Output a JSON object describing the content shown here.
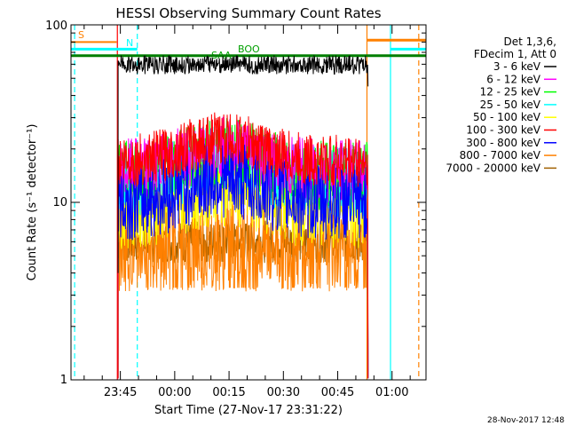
{
  "chart_data": {
    "type": "line",
    "title": "HESSI Observing Summary Count Rates",
    "xlabel": "Start Time (27-Nov-17 23:31:22)",
    "ylabel": "Count Rate (s⁻¹ detector⁻¹)",
    "yscale": "log",
    "ylim": [
      1,
      100
    ],
    "ytick_labels": [
      "1",
      "10",
      "100"
    ],
    "xlim_minutes_from_start": [
      0,
      98
    ],
    "xtick_labels": [
      "23:45",
      "00:00",
      "00:15",
      "00:30",
      "00:45",
      "01:00"
    ],
    "xtick_minutes_from_start": [
      13.63,
      28.63,
      43.63,
      58.63,
      73.63,
      88.63
    ],
    "grid": false,
    "legend_position": "right",
    "legend_header": [
      "Det 1,3,6,",
      "FDecim 1, Att 0"
    ],
    "series": [
      {
        "name": "3 - 6 keV",
        "color": "#000000",
        "approx_level": 60
      },
      {
        "name": "6 - 12 keV",
        "color": "#ff00ff",
        "approx_level": 15
      },
      {
        "name": "12 - 25 keV",
        "color": "#00ff00",
        "approx_level": 14
      },
      {
        "name": "25 - 50 keV",
        "color": "#00ffff",
        "approx_level": 13
      },
      {
        "name": "50 - 100 keV",
        "color": "#ffff00",
        "approx_level": 9
      },
      {
        "name": "100 - 300 keV",
        "color": "#ff0000",
        "approx_level": 17
      },
      {
        "name": "300 - 800 keV",
        "color": "#0000ff",
        "approx_level": 10
      },
      {
        "name": "800 - 7000 keV",
        "color": "#ff8000",
        "approx_level": 6
      },
      {
        "name": "7000 - 20000 keV",
        "color": "#a06000",
        "approx_level": 6
      }
    ],
    "flags": [
      {
        "label": "S",
        "color": "#ff8000"
      },
      {
        "label": "N",
        "color": "#00ffff"
      },
      {
        "label": "SAA",
        "color": "#00a000"
      },
      {
        "label": "BOO",
        "color": "#00a000"
      }
    ],
    "colors": {
      "black": "#000000",
      "magenta": "#ff00ff",
      "green": "#00ff00",
      "cyan": "#00ffff",
      "yellow": "#ffff00",
      "red": "#ff0000",
      "blue": "#0000ff",
      "orange": "#ff8000",
      "brown": "#a06000",
      "flag_green": "#007f00"
    }
  },
  "footer": {
    "timestamp": "28-Nov-2017 12:48"
  }
}
